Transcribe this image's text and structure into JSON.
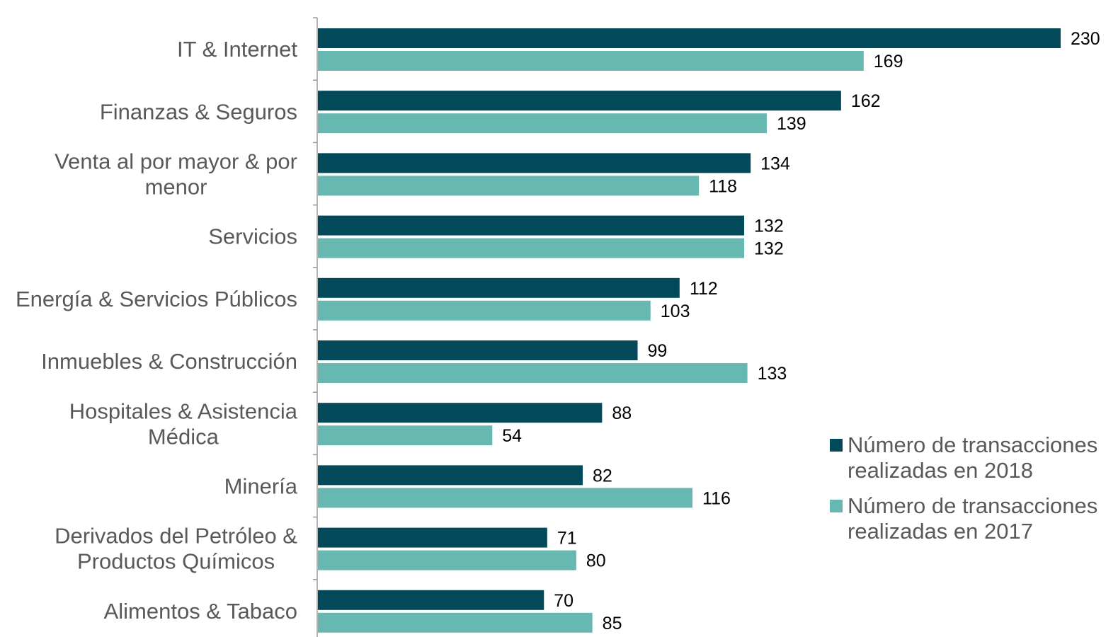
{
  "chart_data": {
    "type": "bar",
    "orientation": "horizontal",
    "categories": [
      [
        "IT & Internet"
      ],
      [
        "Finanzas & Seguros"
      ],
      [
        "Venta al por mayor & por",
        "menor"
      ],
      [
        "Servicios"
      ],
      [
        "Energía & Servicios Públicos"
      ],
      [
        "Inmuebles & Construcción"
      ],
      [
        "Hospitales & Asistencia",
        "Médica"
      ],
      [
        "Minería"
      ],
      [
        "Derivados del Petróleo &",
        "Productos Químicos"
      ],
      [
        "Alimentos & Tabaco"
      ]
    ],
    "series": [
      {
        "name": [
          "Número de transacciones",
          "realizadas en 2018"
        ],
        "color": "#024959",
        "values": [
          230,
          162,
          134,
          132,
          112,
          99,
          88,
          82,
          71,
          70
        ]
      },
      {
        "name": [
          "Número de transacciones",
          "realizadas en 2017"
        ],
        "color": "#66B8B1",
        "values": [
          169,
          139,
          118,
          132,
          103,
          133,
          54,
          116,
          80,
          85
        ]
      }
    ],
    "xlim": [
      0,
      230
    ],
    "legend_position": "right",
    "grid": false,
    "data_labels": true
  }
}
